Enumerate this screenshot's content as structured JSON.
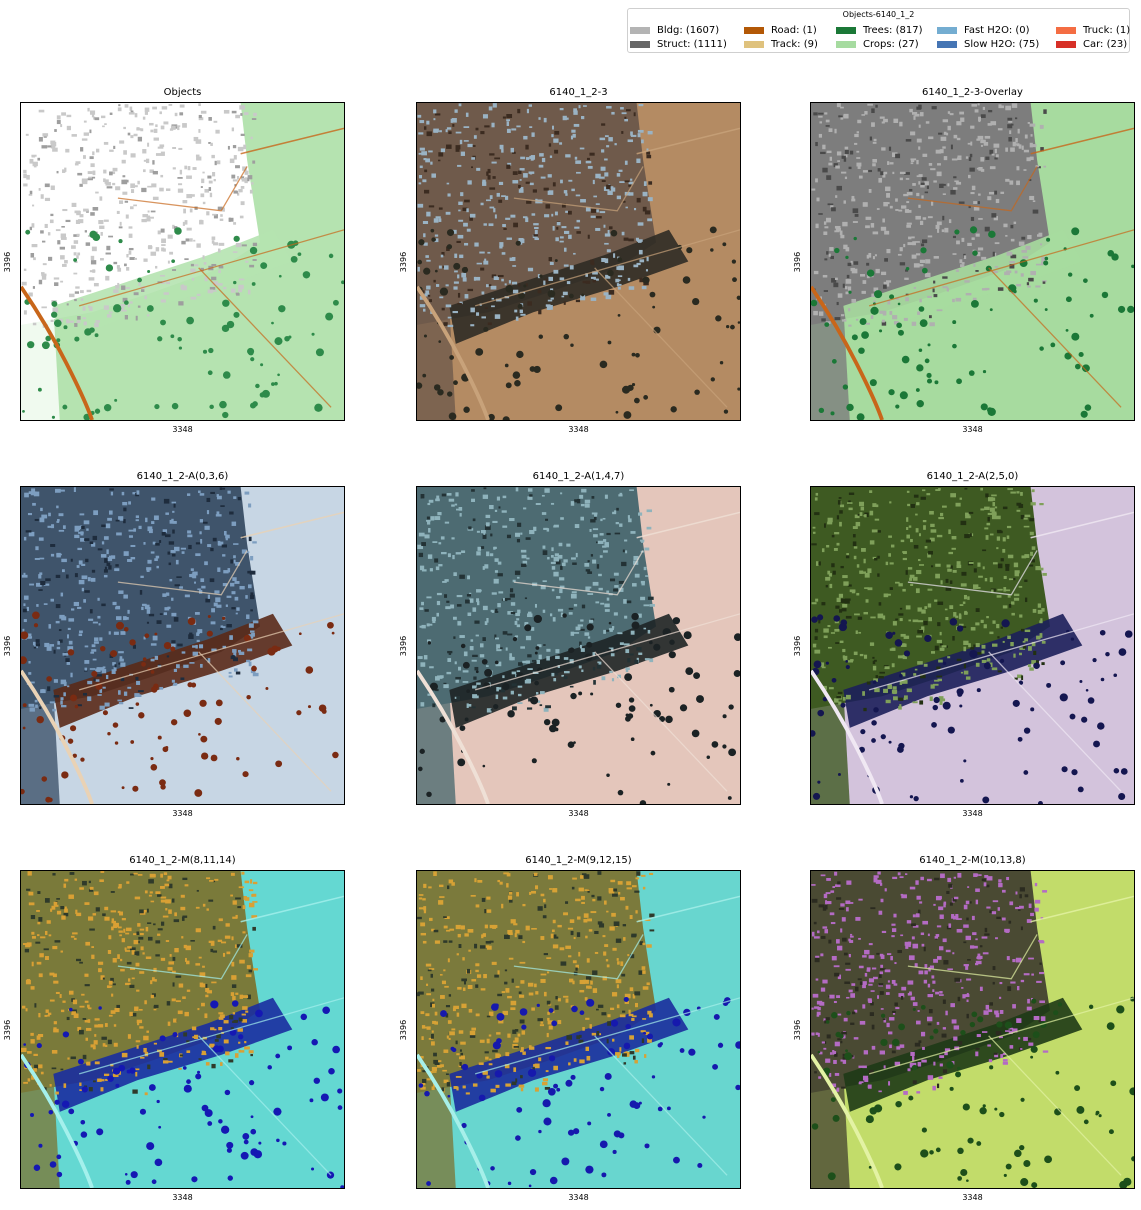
{
  "legend": {
    "title": "Objects-6140_1_2",
    "items": [
      {
        "label": "Bldg: (1607)",
        "color": "#b4b4b4"
      },
      {
        "label": "Struct: (1111)",
        "color": "#666666"
      },
      {
        "label": "Road: (1)",
        "color": "#b35806"
      },
      {
        "label": "Track: (9)",
        "color": "#dfc27d"
      },
      {
        "label": "Trees: (817)",
        "color": "#1b7837"
      },
      {
        "label": "Crops: (27)",
        "color": "#a6dba0"
      },
      {
        "label": "Fast H2O: (0)",
        "color": "#74add1"
      },
      {
        "label": "Slow H2O: (75)",
        "color": "#4575b4"
      },
      {
        "label": "Truck: (1)",
        "color": "#f46d43"
      },
      {
        "label": "Car: (23)",
        "color": "#d73027"
      }
    ]
  },
  "axis": {
    "xlabel": "3348",
    "ylabel": "3396"
  },
  "panels": [
    {
      "title": "Objects",
      "style": "objects"
    },
    {
      "title": "6140_1_2-3",
      "style": "rgb"
    },
    {
      "title": "6140_1_2-3-Overlay",
      "style": "overlay"
    },
    {
      "title": "6140_1_2-A(0,3,6)",
      "style": "a036"
    },
    {
      "title": "6140_1_2-A(1,4,7)",
      "style": "a147"
    },
    {
      "title": "6140_1_2-A(2,5,0)",
      "style": "a250"
    },
    {
      "title": "6140_1_2-M(8,11,14)",
      "style": "m81114"
    },
    {
      "title": "6140_1_2-M(9,12,15)",
      "style": "m91215"
    },
    {
      "title": "6140_1_2-M(10,13,8)",
      "style": "m10138"
    }
  ]
}
